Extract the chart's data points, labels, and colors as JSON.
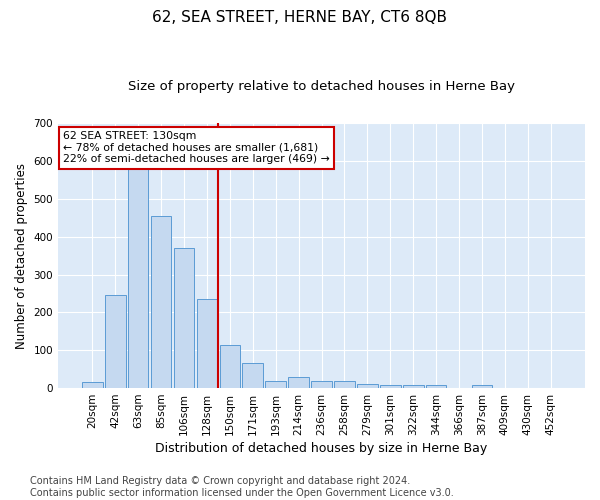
{
  "title": "62, SEA STREET, HERNE BAY, CT6 8QB",
  "subtitle": "Size of property relative to detached houses in Herne Bay",
  "xlabel": "Distribution of detached houses by size in Herne Bay",
  "ylabel": "Number of detached properties",
  "categories": [
    "20sqm",
    "42sqm",
    "63sqm",
    "85sqm",
    "106sqm",
    "128sqm",
    "150sqm",
    "171sqm",
    "193sqm",
    "214sqm",
    "236sqm",
    "258sqm",
    "279sqm",
    "301sqm",
    "322sqm",
    "344sqm",
    "366sqm",
    "387sqm",
    "409sqm",
    "430sqm",
    "452sqm"
  ],
  "values": [
    15,
    245,
    590,
    455,
    370,
    235,
    115,
    65,
    20,
    30,
    20,
    18,
    10,
    8,
    8,
    8,
    0,
    8,
    0,
    0,
    0
  ],
  "bar_color": "#c5d9f0",
  "bar_edgecolor": "#5b9bd5",
  "vline_x_idx": 5,
  "vline_color": "#cc0000",
  "annotation_text": "62 SEA STREET: 130sqm\n← 78% of detached houses are smaller (1,681)\n22% of semi-detached houses are larger (469) →",
  "annotation_box_edgecolor": "#cc0000",
  "annotation_box_facecolor": "#ffffff",
  "ylim": [
    0,
    700
  ],
  "yticks": [
    0,
    100,
    200,
    300,
    400,
    500,
    600,
    700
  ],
  "background_color": "#ddeaf8",
  "footer": "Contains HM Land Registry data © Crown copyright and database right 2024.\nContains public sector information licensed under the Open Government Licence v3.0.",
  "title_fontsize": 11,
  "subtitle_fontsize": 9.5,
  "xlabel_fontsize": 9,
  "ylabel_fontsize": 8.5,
  "tick_fontsize": 7.5,
  "footer_fontsize": 7
}
